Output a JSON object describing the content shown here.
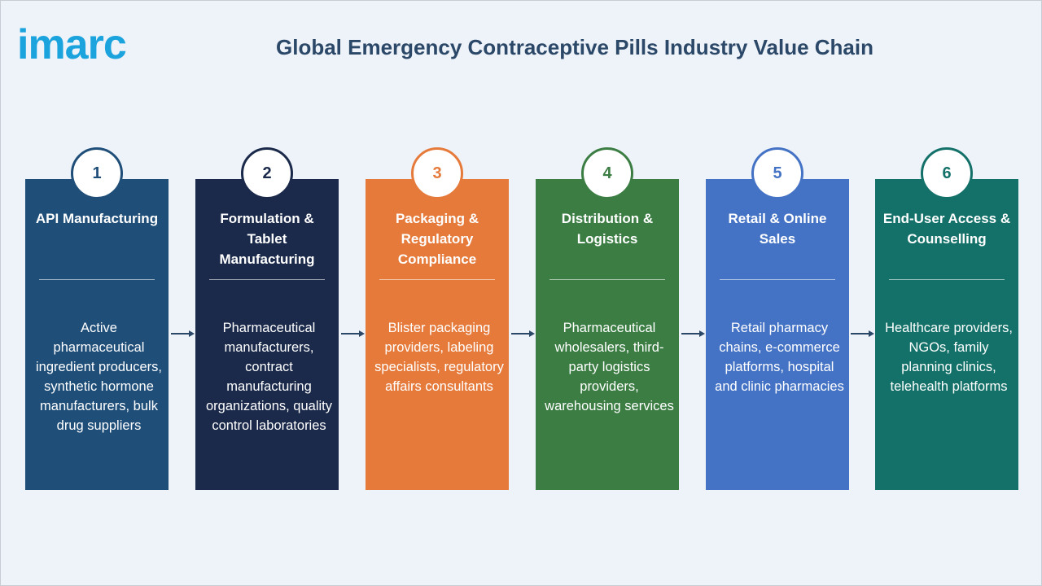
{
  "logo": "imarc",
  "title": "Global Emergency Contraceptive Pills Industry Value Chain",
  "steps": [
    {
      "number": "1",
      "title": "API Manufacturing",
      "description": "Active pharmaceutical ingredient producers, synthetic hormone manufacturers, bulk drug suppliers"
    },
    {
      "number": "2",
      "title": "Formulation & Tablet Manufacturing",
      "description": "Pharmaceutical manufacturers, contract manufacturing organizations, quality control laboratories"
    },
    {
      "number": "3",
      "title": "Packaging & Regulatory Compliance",
      "description": "Blister packaging providers, labeling specialists, regulatory affairs consultants"
    },
    {
      "number": "4",
      "title": "Distribution & Logistics",
      "description": "Pharmaceutical wholesalers, third-party logistics providers, warehousing services"
    },
    {
      "number": "5",
      "title": "Retail & Online Sales",
      "description": "Retail pharmacy chains, e-commerce platforms, hospital and clinic pharmacies"
    },
    {
      "number": "6",
      "title": "End-User Access & Counselling",
      "description": "Healthcare providers, NGOs, family planning clinics, telehealth platforms"
    }
  ]
}
